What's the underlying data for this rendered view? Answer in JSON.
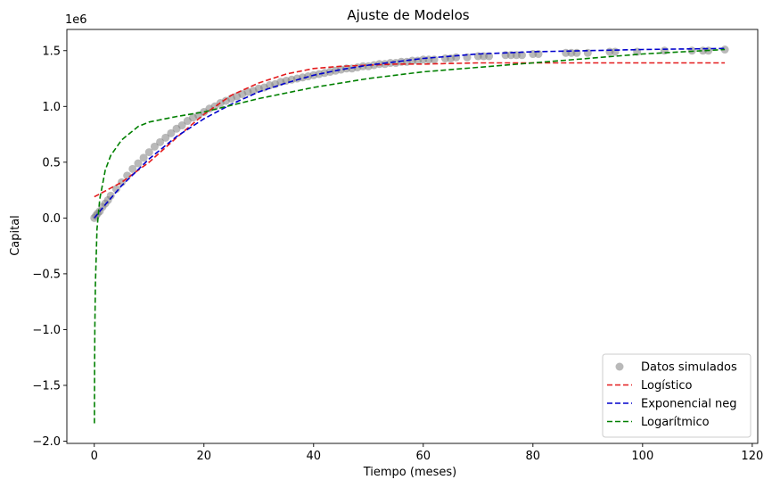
{
  "chart_data": {
    "type": "line",
    "title": "Ajuste de Modelos",
    "xlabel": "Tiempo (meses)",
    "ylabel": "Capital",
    "y_offset_label": "1e6",
    "xlim": [
      -5,
      121
    ],
    "ylim": [
      -2.02,
      1.69
    ],
    "x_ticks": [
      0,
      20,
      40,
      60,
      80,
      100,
      120
    ],
    "y_ticks": [
      -2.0,
      -1.5,
      -1.0,
      -0.5,
      0.0,
      0.5,
      1.0,
      1.5
    ],
    "x_tick_labels": [
      "0",
      "20",
      "40",
      "60",
      "80",
      "100",
      "120"
    ],
    "y_tick_labels": [
      "−2.0",
      "−1.5",
      "−1.0",
      "−0.5",
      "0.0",
      "0.5",
      "1.0",
      "1.5"
    ],
    "grid": false,
    "legend_position": "bottom-right",
    "scatter": {
      "name": "Datos simulados",
      "color": "#808080",
      "x": [
        0,
        0.3,
        0.6,
        1,
        1.5,
        2,
        2.5,
        3,
        4,
        5,
        6,
        7,
        8,
        9,
        10,
        11,
        12,
        13,
        14,
        15,
        16,
        17,
        18,
        19,
        20,
        21,
        22,
        23,
        24,
        25,
        26,
        27,
        28,
        29,
        30,
        31,
        32,
        33,
        34,
        35,
        36,
        37,
        38,
        39,
        40,
        41,
        42,
        43,
        44,
        45,
        46,
        47,
        48,
        49,
        50,
        51,
        52,
        53,
        54,
        55,
        56,
        57,
        58,
        59,
        60,
        61,
        62,
        64,
        65,
        66,
        68,
        70,
        71,
        72,
        75,
        76,
        77,
        78,
        80,
        81,
        86,
        87,
        88,
        90,
        94,
        95,
        99,
        104,
        109,
        111,
        112,
        115
      ],
      "y": [
        0.0,
        0.02,
        0.04,
        0.06,
        0.1,
        0.13,
        0.16,
        0.2,
        0.26,
        0.32,
        0.38,
        0.44,
        0.49,
        0.54,
        0.59,
        0.64,
        0.68,
        0.72,
        0.76,
        0.8,
        0.83,
        0.87,
        0.9,
        0.92,
        0.95,
        0.98,
        1.0,
        1.03,
        1.05,
        1.07,
        1.09,
        1.11,
        1.13,
        1.14,
        1.16,
        1.17,
        1.19,
        1.2,
        1.22,
        1.23,
        1.24,
        1.25,
        1.26,
        1.27,
        1.28,
        1.29,
        1.3,
        1.31,
        1.32,
        1.33,
        1.34,
        1.34,
        1.35,
        1.36,
        1.36,
        1.37,
        1.38,
        1.38,
        1.39,
        1.39,
        1.4,
        1.4,
        1.41,
        1.41,
        1.42,
        1.42,
        1.42,
        1.43,
        1.43,
        1.44,
        1.44,
        1.45,
        1.45,
        1.45,
        1.46,
        1.46,
        1.46,
        1.46,
        1.47,
        1.47,
        1.48,
        1.48,
        1.48,
        1.48,
        1.49,
        1.49,
        1.49,
        1.5,
        1.5,
        1.5,
        1.5,
        1.51
      ]
    },
    "series": [
      {
        "name": "Logístico",
        "color": "#e31a1c",
        "x": [
          0,
          5,
          10,
          15,
          20,
          25,
          30,
          35,
          40,
          45,
          50,
          55,
          60,
          70,
          80,
          90,
          100,
          115
        ],
        "y": [
          0.19,
          0.32,
          0.5,
          0.72,
          0.93,
          1.1,
          1.21,
          1.29,
          1.34,
          1.36,
          1.37,
          1.38,
          1.38,
          1.39,
          1.39,
          1.39,
          1.39,
          1.39
        ]
      },
      {
        "name": "Exponencial neg",
        "color": "#0000cc",
        "x": [
          0,
          2,
          5,
          10,
          15,
          20,
          25,
          30,
          35,
          40,
          45,
          50,
          60,
          70,
          80,
          90,
          100,
          115
        ],
        "y": [
          0.0,
          0.12,
          0.29,
          0.53,
          0.73,
          0.89,
          1.02,
          1.13,
          1.21,
          1.28,
          1.33,
          1.37,
          1.43,
          1.47,
          1.49,
          1.5,
          1.51,
          1.52
        ]
      },
      {
        "name": "Logarítmico",
        "color": "#008000",
        "x": [
          0.02,
          0.05,
          0.1,
          0.2,
          0.5,
          1,
          2,
          3,
          5,
          8,
          10,
          15,
          20,
          30,
          40,
          50,
          60,
          80,
          100,
          115
        ],
        "y": [
          -1.84,
          -1.35,
          -0.98,
          -0.6,
          -0.1,
          0.17,
          0.43,
          0.56,
          0.7,
          0.82,
          0.86,
          0.91,
          0.95,
          1.07,
          1.17,
          1.25,
          1.31,
          1.39,
          1.47,
          1.51
        ]
      }
    ]
  }
}
